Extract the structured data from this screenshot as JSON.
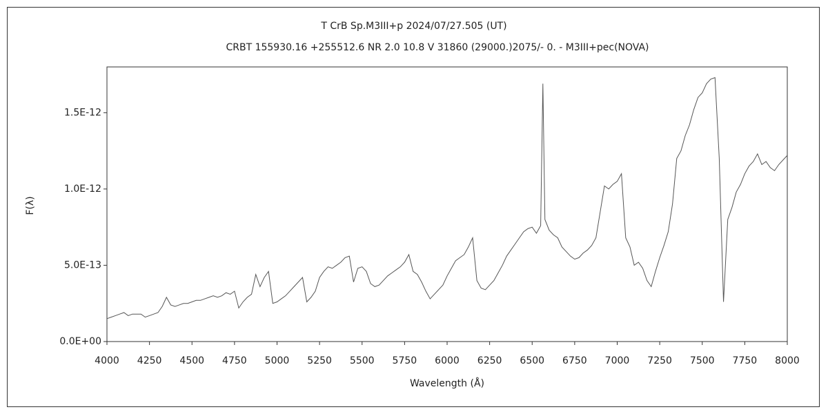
{
  "chart_data": {
    "type": "line",
    "title": "T CrB   Sp.M3III+p   2024/07/27.505 (UT)",
    "subtitle": "CRBT 155930.16 +255512.6 NR 2.0 10.8 V 31860 (29000.)2075/-  0. - M3III+pec(NOVA)",
    "x_label": "Wavelength (Å)",
    "y_label": "F(λ)",
    "xlim": [
      4000,
      8000
    ],
    "xticks": [
      4000,
      4250,
      4500,
      4750,
      5000,
      5250,
      5500,
      5750,
      6000,
      6250,
      6500,
      6750,
      7000,
      7250,
      7500,
      7750,
      8000
    ],
    "ylim": [
      0,
      1.8e-12
    ],
    "yticks": [
      {
        "value": 0,
        "label": "0.0E+00"
      },
      {
        "value": 5e-13,
        "label": "5.0E-13"
      },
      {
        "value": 1e-12,
        "label": "1.0E-12"
      },
      {
        "value": 1.5e-12,
        "label": "1.5E-12"
      }
    ],
    "x": [
      4000,
      4025,
      4050,
      4075,
      4100,
      4125,
      4150,
      4175,
      4200,
      4225,
      4250,
      4275,
      4300,
      4325,
      4350,
      4375,
      4400,
      4425,
      4450,
      4475,
      4500,
      4525,
      4550,
      4575,
      4600,
      4625,
      4650,
      4675,
      4700,
      4725,
      4750,
      4775,
      4800,
      4825,
      4850,
      4875,
      4900,
      4925,
      4950,
      4975,
      5000,
      5025,
      5050,
      5075,
      5100,
      5125,
      5150,
      5175,
      5200,
      5225,
      5250,
      5275,
      5300,
      5325,
      5350,
      5375,
      5400,
      5425,
      5450,
      5475,
      5500,
      5525,
      5550,
      5575,
      5600,
      5625,
      5650,
      5675,
      5700,
      5725,
      5750,
      5775,
      5800,
      5825,
      5850,
      5875,
      5900,
      5925,
      5950,
      5975,
      6000,
      6025,
      6050,
      6075,
      6100,
      6125,
      6150,
      6175,
      6200,
      6225,
      6250,
      6275,
      6300,
      6325,
      6350,
      6375,
      6400,
      6425,
      6450,
      6475,
      6500,
      6525,
      6550,
      6563,
      6575,
      6600,
      6625,
      6650,
      6675,
      6700,
      6725,
      6750,
      6775,
      6800,
      6825,
      6850,
      6875,
      6900,
      6925,
      6950,
      6975,
      7000,
      7025,
      7050,
      7075,
      7100,
      7125,
      7150,
      7175,
      7200,
      7225,
      7250,
      7275,
      7300,
      7325,
      7350,
      7375,
      7400,
      7425,
      7450,
      7475,
      7500,
      7525,
      7550,
      7575,
      7600,
      7625,
      7650,
      7675,
      7700,
      7725,
      7750,
      7775,
      7800,
      7825,
      7850,
      7875,
      7900,
      7925,
      7950,
      7975,
      8000
    ],
    "series": [
      {
        "color": "#555555",
        "values": [
          1.5e-13,
          1.6e-13,
          1.7e-13,
          1.8e-13,
          1.9e-13,
          1.7e-13,
          1.8e-13,
          1.8e-13,
          1.8e-13,
          1.6e-13,
          1.7e-13,
          1.8e-13,
          1.9e-13,
          2.3e-13,
          2.9e-13,
          2.4e-13,
          2.3e-13,
          2.4e-13,
          2.5e-13,
          2.5e-13,
          2.6e-13,
          2.7e-13,
          2.7e-13,
          2.8e-13,
          2.9e-13,
          3e-13,
          2.9e-13,
          3e-13,
          3.2e-13,
          3.1e-13,
          3.3e-13,
          2.2e-13,
          2.6e-13,
          2.9e-13,
          3.1e-13,
          4.4e-13,
          3.6e-13,
          4.2e-13,
          4.6e-13,
          2.5e-13,
          2.6e-13,
          2.8e-13,
          3e-13,
          3.3e-13,
          3.6e-13,
          3.9e-13,
          4.2e-13,
          2.6e-13,
          2.9e-13,
          3.3e-13,
          4.2e-13,
          4.6e-13,
          4.9e-13,
          4.8e-13,
          5e-13,
          5.2e-13,
          5.5e-13,
          5.6e-13,
          3.9e-13,
          4.8e-13,
          4.9e-13,
          4.6e-13,
          3.8e-13,
          3.6e-13,
          3.7e-13,
          4e-13,
          4.3e-13,
          4.5e-13,
          4.7e-13,
          4.9e-13,
          5.2e-13,
          5.7e-13,
          4.6e-13,
          4.4e-13,
          3.9e-13,
          3.3e-13,
          2.8e-13,
          3.1e-13,
          3.4e-13,
          3.7e-13,
          4.3e-13,
          4.8e-13,
          5.3e-13,
          5.5e-13,
          5.7e-13,
          6.2e-13,
          6.8e-13,
          4e-13,
          3.5e-13,
          3.4e-13,
          3.7e-13,
          4e-13,
          4.5e-13,
          5e-13,
          5.6e-13,
          6e-13,
          6.4e-13,
          6.8e-13,
          7.2e-13,
          7.4e-13,
          7.5e-13,
          7.1e-13,
          7.6e-13,
          1.69e-12,
          8e-13,
          7.3e-13,
          7e-13,
          6.8e-13,
          6.2e-13,
          5.9e-13,
          5.6e-13,
          5.4e-13,
          5.5e-13,
          5.8e-13,
          6e-13,
          6.3e-13,
          6.8e-13,
          8.5e-13,
          1.02e-12,
          1e-12,
          1.03e-12,
          1.05e-12,
          1.1e-12,
          6.8e-13,
          6.2e-13,
          5e-13,
          5.2e-13,
          4.8e-13,
          4e-13,
          3.6e-13,
          4.6e-13,
          5.5e-13,
          6.3e-13,
          7.2e-13,
          9e-13,
          1.2e-12,
          1.25e-12,
          1.35e-12,
          1.42e-12,
          1.52e-12,
          1.6e-12,
          1.63e-12,
          1.69e-12,
          1.72e-12,
          1.73e-12,
          1.2e-12,
          2.6e-13,
          8e-13,
          8.8e-13,
          9.8e-13,
          1.03e-12,
          1.1e-12,
          1.15e-12,
          1.18e-12,
          1.23e-12,
          1.16e-12,
          1.18e-12,
          1.14e-12,
          1.12e-12,
          1.16e-12,
          1.19e-12,
          1.22e-12
        ]
      }
    ]
  }
}
